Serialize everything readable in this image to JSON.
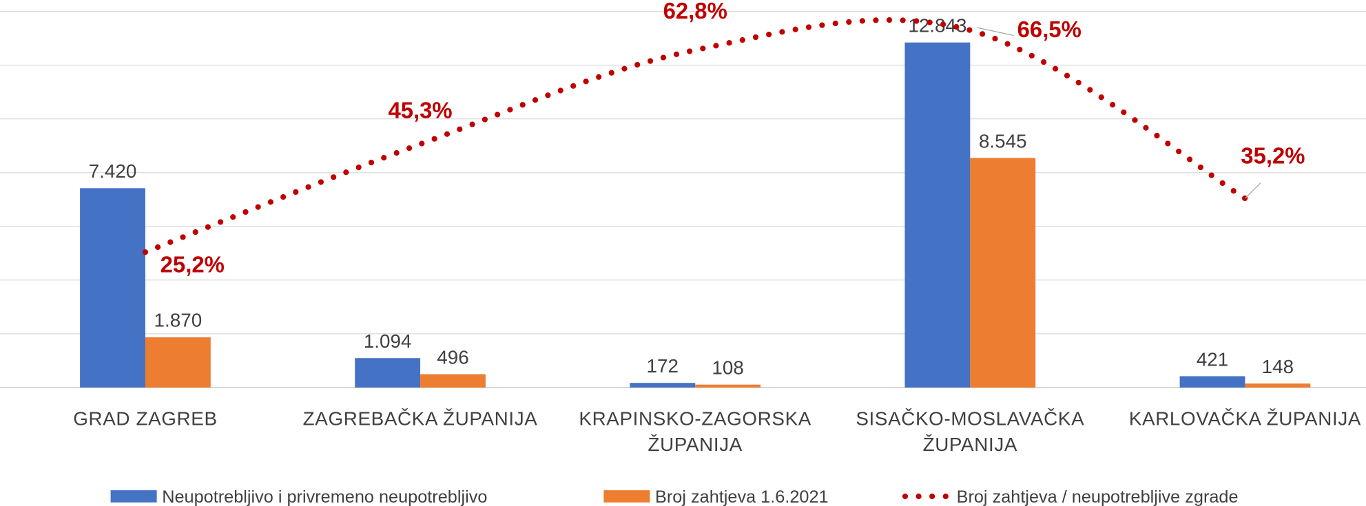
{
  "chart_data": {
    "type": "bar",
    "categories": [
      "GRAD ZAGREB",
      "ZAGREBAČKA ŽUPANIJA",
      "KRAPINSKO-ZAGORSKA ŽUPANIJA",
      "SISAČKO-MOSLAVAČKA ŽUPANIJA",
      "KARLOVAČKA ŽUPANIJA"
    ],
    "series": [
      {
        "name": "Neupotrebljivo i privremeno neupotrebljivo",
        "color": "#4472c4",
        "type": "bar",
        "values": [
          7420,
          1094,
          172,
          12843,
          421
        ],
        "value_labels": [
          "7.420",
          "1.094",
          "172",
          "12.843",
          "421"
        ]
      },
      {
        "name": "Broj zahtjeva 1.6.2021",
        "color": "#ed7d31",
        "type": "bar",
        "values": [
          1870,
          496,
          108,
          8545,
          148
        ],
        "value_labels": [
          "1.870",
          "496",
          "108",
          "8.545",
          "148"
        ]
      },
      {
        "name": "Broj zahtjeva / neupotrebljive zgrade",
        "color": "#c00000",
        "type": "line",
        "axis": "y2",
        "dotted": true,
        "smooth": true,
        "values": [
          25.2,
          45.3,
          62.8,
          66.5,
          35.2
        ],
        "value_labels": [
          "25,2%",
          "45,3%",
          "62,8%",
          "66,5%",
          "35,2%"
        ]
      }
    ],
    "ylim": [
      0,
      14000
    ],
    "yticks": [
      0,
      2000,
      4000,
      6000,
      8000,
      10000,
      12000,
      14000
    ],
    "y2lim": [
      0,
      70
    ],
    "grid": true,
    "legend": "bottom"
  }
}
